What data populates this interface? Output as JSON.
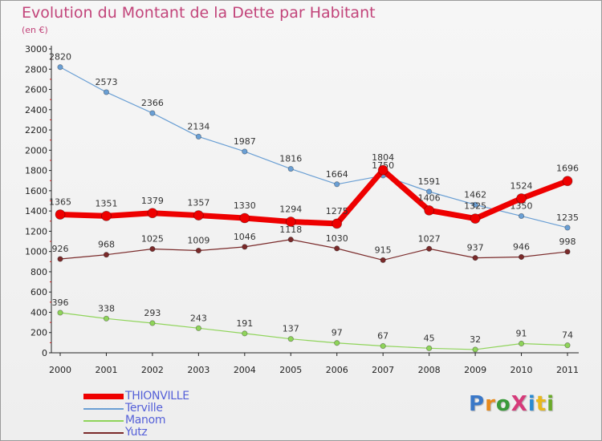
{
  "title": "Evolution du Montant de la Dette par Habitant",
  "unit_label": "(en €)",
  "logo": {
    "text": "ProXiti",
    "colors": [
      "#3a78c8",
      "#e88a1c",
      "#3a9a3a",
      "#d63a7a",
      "#2a8ad0",
      "#e8b81c",
      "#6aaa2a"
    ]
  },
  "chart_data": {
    "type": "line",
    "title": "Evolution du Montant de la Dette par Habitant",
    "ylabel": "(en €)",
    "xlabel": "",
    "categories": [
      "2000",
      "2001",
      "2002",
      "2003",
      "2004",
      "2005",
      "2006",
      "2007",
      "2008",
      "2009",
      "2010",
      "2011"
    ],
    "ylim": [
      0,
      3000
    ],
    "yticks": [
      "0",
      "200",
      "400",
      "600",
      "800",
      "1000",
      "1200",
      "1400",
      "1600",
      "1800",
      "2000",
      "2200",
      "2400",
      "2600",
      "2800",
      "3000"
    ],
    "grid": false,
    "legend_position": "bottom-left",
    "series": [
      {
        "name": "Terville",
        "color": "#6a9fd4",
        "values": [
          2820,
          2573,
          2366,
          2134,
          1987,
          1816,
          1664,
          1750,
          1591,
          1462,
          1350,
          1235
        ],
        "labels": [
          "2820",
          "2573",
          "2366",
          "2134",
          "1987",
          "1816",
          "1664",
          "1750",
          "1591",
          "1462",
          "1350",
          "1235"
        ]
      },
      {
        "name": "Manom",
        "color": "#8fd45a",
        "values": [
          396,
          338,
          293,
          243,
          191,
          137,
          97,
          67,
          45,
          32,
          91,
          74
        ],
        "labels": [
          "396",
          "338",
          "293",
          "243",
          "191",
          "137",
          "97",
          "67",
          "45",
          "32",
          "91",
          "74"
        ]
      },
      {
        "name": "Yutz",
        "color": "#7a2a2a",
        "values": [
          926,
          968,
          1025,
          1009,
          1046,
          1118,
          1030,
          915,
          1027,
          937,
          946,
          998
        ],
        "labels": [
          "926",
          "968",
          "1025",
          "1009",
          "1046",
          "1118",
          "1030",
          "915",
          "1027",
          "937",
          "946",
          "998"
        ]
      },
      {
        "name": "THIONVILLE",
        "color": "#ee0000",
        "values": [
          1365,
          1351,
          1379,
          1357,
          1330,
          1294,
          1275,
          1804,
          1406,
          1325,
          1524,
          1696
        ],
        "labels": [
          "1365",
          "1351",
          "1379",
          "1357",
          "1330",
          "1294",
          "1275",
          "1804",
          "1406",
          "1325",
          "1524",
          "1696"
        ]
      }
    ],
    "legend": [
      "THIONVILLE",
      "Terville",
      "Manom",
      "Yutz"
    ]
  }
}
